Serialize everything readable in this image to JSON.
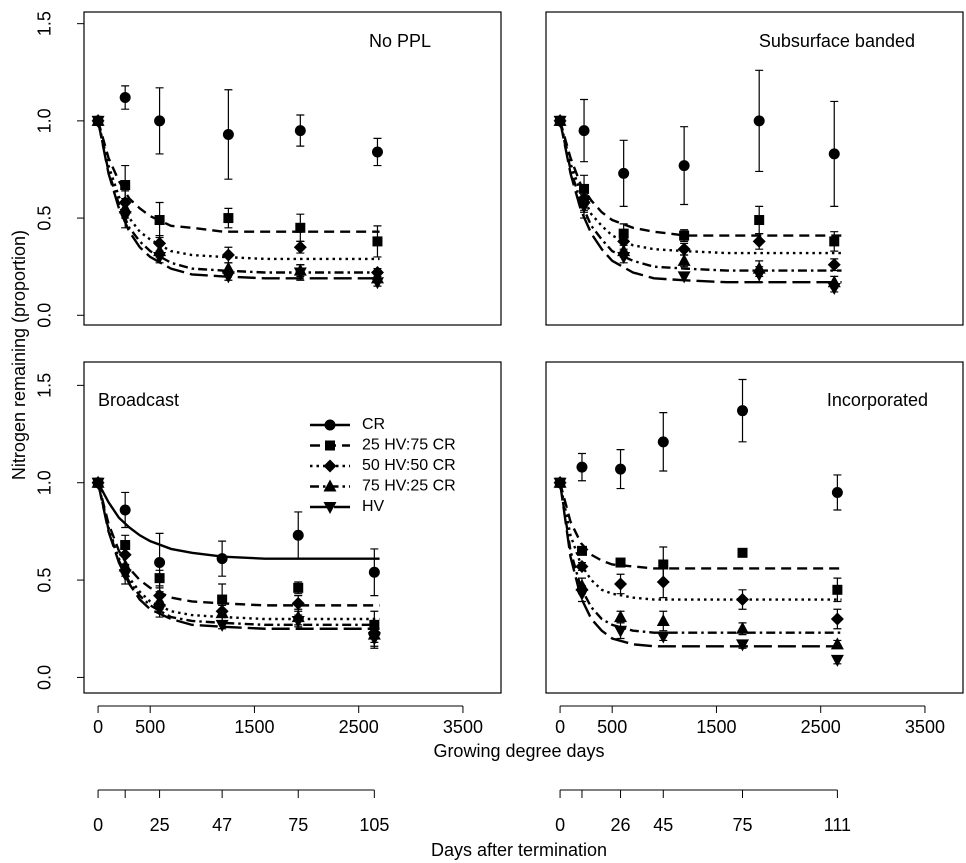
{
  "figure": {
    "ylabel": "Nitrogen remaining (proportion)",
    "xlabel": "Growing degree days",
    "x2label": "Days after termination"
  },
  "chart_data": [
    {
      "type": "scatter",
      "title": "No PPL",
      "xlim": [
        -135,
        3865
      ],
      "ylim": [
        -0.05,
        1.56
      ],
      "yticks": [
        {
          "value": 0,
          "label": "0.0"
        },
        {
          "value": 0.5,
          "label": "0.5"
        },
        {
          "value": 1,
          "label": "1.0"
        },
        {
          "value": 1.5,
          "label": "1.5"
        }
      ],
      "x": [
        0,
        260,
        590,
        1250,
        1940,
        2680
      ],
      "fit_x": [
        0,
        100,
        200,
        300,
        400,
        500,
        700,
        900,
        1200,
        1600,
        2100,
        2700
      ],
      "series": [
        {
          "marker": "circle",
          "values": [
            1.0,
            1.12,
            1.0,
            0.93,
            0.95,
            0.84
          ],
          "errors": [
            null,
            0.06,
            0.17,
            0.23,
            0.08,
            0.07
          ]
        },
        {
          "marker": "square",
          "line": "dashed",
          "values": [
            1.0,
            0.67,
            0.49,
            0.5,
            0.45,
            0.38
          ],
          "errors": [
            null,
            0.1,
            0.09,
            0.05,
            0.07,
            0.08
          ],
          "fit": [
            1,
            0.81,
            0.69,
            0.6,
            0.55,
            0.51,
            0.46,
            0.45,
            0.43,
            0.43,
            0.43,
            0.43
          ]
        },
        {
          "marker": "diamond",
          "line": "dotted",
          "values": [
            1.0,
            0.58,
            0.37,
            0.31,
            0.35,
            0.22
          ],
          "errors": [
            null,
            0.06,
            0.04,
            0.04,
            0.03,
            0.02
          ],
          "fit": [
            1,
            0.77,
            0.61,
            0.5,
            0.43,
            0.39,
            0.33,
            0.31,
            0.3,
            0.29,
            0.29,
            0.29
          ]
        },
        {
          "marker": "triangle-up",
          "line": "dashdot",
          "values": [
            1.0,
            0.55,
            0.33,
            0.24,
            0.23,
            0.19
          ],
          "errors": [
            null,
            0.05,
            0.03,
            0.03,
            0.03,
            0.02
          ],
          "fit": [
            1,
            0.74,
            0.57,
            0.45,
            0.38,
            0.33,
            0.27,
            0.24,
            0.23,
            0.22,
            0.22,
            0.22
          ]
        },
        {
          "marker": "triangle-down",
          "line": "longdash",
          "values": [
            1.0,
            0.51,
            0.3,
            0.2,
            0.22,
            0.17
          ],
          "errors": [
            null,
            0.06,
            0.03,
            0.02,
            0.04,
            0.02
          ],
          "fit": [
            1,
            0.73,
            0.55,
            0.43,
            0.35,
            0.3,
            0.24,
            0.21,
            0.2,
            0.19,
            0.19,
            0.19
          ]
        }
      ]
    },
    {
      "type": "scatter",
      "title": "Subsurface banded",
      "xlim": [
        -135,
        3865
      ],
      "ylim": [
        -0.05,
        1.56
      ],
      "x": [
        0,
        230,
        610,
        1190,
        1910,
        2630
      ],
      "fit_x": [
        0,
        100,
        200,
        300,
        400,
        500,
        700,
        900,
        1200,
        1600,
        2100,
        2700
      ],
      "series": [
        {
          "marker": "circle",
          "values": [
            1.0,
            0.95,
            0.73,
            0.77,
            1.0,
            0.83
          ],
          "errors": [
            null,
            0.16,
            0.17,
            0.2,
            0.26,
            0.27
          ]
        },
        {
          "marker": "square",
          "line": "dashed",
          "values": [
            1.0,
            0.65,
            0.42,
            0.41,
            0.49,
            0.38
          ],
          "errors": [
            null,
            0.07,
            0.05,
            0.03,
            0.07,
            0.05
          ],
          "fit": [
            1,
            0.81,
            0.67,
            0.59,
            0.53,
            0.49,
            0.45,
            0.43,
            0.41,
            0.41,
            0.41,
            0.41
          ]
        },
        {
          "marker": "diamond",
          "line": "dotted",
          "values": [
            1.0,
            0.6,
            0.38,
            0.34,
            0.38,
            0.26
          ],
          "errors": [
            null,
            0.06,
            0.04,
            0.03,
            0.04,
            0.03
          ],
          "fit": [
            1,
            0.78,
            0.63,
            0.52,
            0.46,
            0.41,
            0.36,
            0.34,
            0.33,
            0.32,
            0.32,
            0.32
          ]
        },
        {
          "marker": "triangle-up",
          "line": "dashdot",
          "values": [
            1.0,
            0.6,
            0.33,
            0.28,
            0.24,
            0.17
          ],
          "errors": [
            null,
            0.07,
            0.03,
            0.03,
            0.04,
            0.03
          ],
          "fit": [
            1,
            0.75,
            0.58,
            0.46,
            0.39,
            0.33,
            0.28,
            0.25,
            0.24,
            0.23,
            0.23,
            0.23
          ]
        },
        {
          "marker": "triangle-down",
          "line": "longdash",
          "values": [
            1.0,
            0.56,
            0.3,
            0.2,
            0.21,
            0.14
          ],
          "errors": [
            null,
            0.06,
            0.03,
            0.02,
            0.04,
            0.02
          ],
          "fit": [
            1,
            0.73,
            0.54,
            0.42,
            0.34,
            0.28,
            0.22,
            0.19,
            0.18,
            0.17,
            0.17,
            0.17
          ]
        }
      ]
    },
    {
      "type": "scatter",
      "title": "Broadcast",
      "xlim": [
        -135,
        3865
      ],
      "ylim": [
        -0.08,
        1.62
      ],
      "legend": "top",
      "yticks": [
        {
          "value": 0,
          "label": "0.0"
        },
        {
          "value": 0.5,
          "label": "0.5"
        },
        {
          "value": 1,
          "label": "1.0"
        },
        {
          "value": 1.5,
          "label": "1.5"
        }
      ],
      "xticks": [
        0,
        500,
        1500,
        2500,
        3500
      ],
      "x2ticks": [
        {
          "value": 0,
          "label": "0"
        },
        {
          "value": 260,
          "label": null
        },
        {
          "value": 590,
          "label": "25"
        },
        {
          "value": 1190,
          "label": "47"
        },
        {
          "value": 1920,
          "label": "75"
        },
        {
          "value": 2650,
          "label": "105"
        }
      ],
      "x": [
        0,
        260,
        590,
        1190,
        1920,
        2650
      ],
      "fit_x": [
        0,
        100,
        200,
        300,
        400,
        500,
        700,
        900,
        1200,
        1600,
        2100,
        2700
      ],
      "series": [
        {
          "name": "CR",
          "marker": "circle",
          "line": "solid",
          "values": [
            1.0,
            0.86,
            0.59,
            0.61,
            0.73,
            0.54
          ],
          "errors": [
            null,
            0.09,
            0.15,
            0.09,
            0.12,
            0.12
          ],
          "fit": [
            1,
            0.9,
            0.82,
            0.77,
            0.73,
            0.7,
            0.66,
            0.64,
            0.62,
            0.61,
            0.61,
            0.61
          ]
        },
        {
          "name": "25 HV:75 CR",
          "marker": "square",
          "line": "dashed",
          "values": [
            1.0,
            0.68,
            0.51,
            0.4,
            0.46,
            0.27
          ],
          "errors": [
            null,
            0.05,
            0.04,
            0.08,
            0.03,
            0.07
          ],
          "fit": [
            1,
            0.79,
            0.65,
            0.56,
            0.5,
            0.46,
            0.41,
            0.39,
            0.38,
            0.37,
            0.37,
            0.37
          ]
        },
        {
          "name": "50 HV:50 CR",
          "marker": "diamond",
          "line": "dotted",
          "values": [
            1.0,
            0.63,
            0.42,
            0.34,
            0.38,
            0.23
          ],
          "errors": [
            null,
            0.05,
            0.04,
            0.05,
            0.04,
            0.05
          ],
          "fit": [
            1,
            0.77,
            0.61,
            0.51,
            0.44,
            0.39,
            0.34,
            0.32,
            0.31,
            0.3,
            0.3,
            0.3
          ]
        },
        {
          "name": "75 HV:25 CR",
          "marker": "triangle-up",
          "line": "dashdot",
          "values": [
            1.0,
            0.57,
            0.39,
            0.33,
            0.31,
            0.22
          ],
          "errors": [
            null,
            0.05,
            0.04,
            0.04,
            0.04,
            0.06
          ],
          "fit": [
            1,
            0.76,
            0.6,
            0.49,
            0.42,
            0.37,
            0.31,
            0.29,
            0.28,
            0.27,
            0.27,
            0.27
          ]
        },
        {
          "name": "HV",
          "marker": "triangle-down",
          "line": "longdash",
          "values": [
            1.0,
            0.53,
            0.35,
            0.27,
            0.29,
            0.2
          ],
          "errors": [
            null,
            0.05,
            0.04,
            0.02,
            0.03,
            0.05
          ],
          "fit": [
            1,
            0.75,
            0.59,
            0.48,
            0.4,
            0.35,
            0.3,
            0.27,
            0.26,
            0.25,
            0.25,
            0.25
          ]
        }
      ]
    },
    {
      "type": "scatter",
      "title": "Incorporated",
      "xlim": [
        -135,
        3865
      ],
      "ylim": [
        -0.08,
        1.62
      ],
      "xticks": [
        0,
        500,
        1500,
        2500,
        3500
      ],
      "x2ticks": [
        {
          "value": 0,
          "label": "0"
        },
        {
          "value": 210,
          "label": null
        },
        {
          "value": 580,
          "label": "26"
        },
        {
          "value": 990,
          "label": "45"
        },
        {
          "value": 1750,
          "label": "75"
        },
        {
          "value": 2660,
          "label": "111"
        }
      ],
      "x": [
        0,
        210,
        580,
        990,
        1750,
        2660
      ],
      "fit_x": [
        0,
        100,
        200,
        300,
        400,
        500,
        700,
        900,
        1200,
        1600,
        2100,
        2700
      ],
      "series": [
        {
          "marker": "circle",
          "values": [
            1.0,
            1.08,
            1.07,
            1.21,
            1.37,
            0.95
          ],
          "errors": [
            null,
            0.07,
            0.1,
            0.15,
            0.16,
            0.09
          ]
        },
        {
          "marker": "square",
          "line": "dashed",
          "values": [
            1.0,
            0.65,
            0.59,
            0.58,
            0.64,
            0.45
          ],
          "errors": [
            null,
            0.02,
            0.02,
            0.09,
            0.02,
            0.06
          ],
          "fit": [
            1,
            0.8,
            0.69,
            0.63,
            0.6,
            0.58,
            0.57,
            0.56,
            0.56,
            0.56,
            0.56,
            0.56
          ]
        },
        {
          "marker": "diamond",
          "line": "dotted",
          "values": [
            1.0,
            0.57,
            0.48,
            0.49,
            0.4,
            0.3
          ],
          "errors": [
            null,
            0.02,
            0.05,
            0.08,
            0.05,
            0.05
          ],
          "fit": [
            1,
            0.73,
            0.58,
            0.5,
            0.45,
            0.43,
            0.41,
            0.4,
            0.4,
            0.4,
            0.4,
            0.4
          ]
        },
        {
          "marker": "triangle-up",
          "line": "dashdot",
          "values": [
            1.0,
            0.47,
            0.31,
            0.29,
            0.25,
            0.17
          ],
          "errors": [
            null,
            0.04,
            0.03,
            0.05,
            0.03,
            0.02
          ],
          "fit": [
            1,
            0.65,
            0.46,
            0.36,
            0.3,
            0.27,
            0.24,
            0.23,
            0.23,
            0.23,
            0.23,
            0.23
          ]
        },
        {
          "marker": "triangle-down",
          "line": "longdash",
          "values": [
            1.0,
            0.43,
            0.24,
            0.21,
            0.17,
            0.09
          ],
          "errors": [
            null,
            0.04,
            0.04,
            0.02,
            0.02,
            0.02
          ],
          "fit": [
            1,
            0.62,
            0.41,
            0.3,
            0.24,
            0.2,
            0.17,
            0.16,
            0.16,
            0.16,
            0.16,
            0.16
          ]
        }
      ]
    }
  ]
}
